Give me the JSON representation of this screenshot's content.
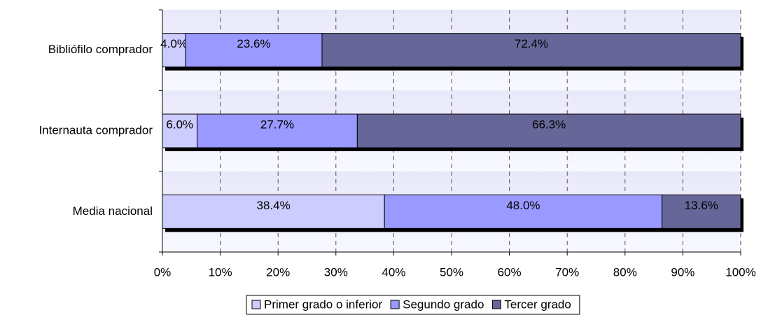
{
  "chart_data": {
    "type": "stacked_bar_horizontal",
    "categories": [
      "Bibliófilo comprador",
      "Internauta comprador",
      "Media nacional"
    ],
    "series": [
      {
        "name": "Primer grado o inferior",
        "color": "#ccccff",
        "values": [
          4.0,
          6.0,
          38.4
        ],
        "value_labels": [
          "4.0%",
          "6.0%",
          "38.4%"
        ]
      },
      {
        "name": "Segundo grado",
        "color": "#9999ff",
        "values": [
          23.6,
          27.7,
          48.0
        ],
        "value_labels": [
          "23.6%",
          "27.7%",
          "48.0%"
        ]
      },
      {
        "name": "Tercer grado",
        "color": "#666699",
        "values": [
          72.4,
          66.3,
          13.6
        ],
        "value_labels": [
          "72.4%",
          "66.3%",
          "13.6%"
        ]
      }
    ],
    "xlim": [
      0,
      100
    ],
    "xticks": [
      {
        "value": 0,
        "label": "0%"
      },
      {
        "value": 10,
        "label": "10%"
      },
      {
        "value": 20,
        "label": "20%"
      },
      {
        "value": 30,
        "label": "30%"
      },
      {
        "value": 40,
        "label": "40%"
      },
      {
        "value": 50,
        "label": "50%"
      },
      {
        "value": 60,
        "label": "60%"
      },
      {
        "value": 70,
        "label": "70%"
      },
      {
        "value": 80,
        "label": "80%"
      },
      {
        "value": 90,
        "label": "90%"
      },
      {
        "value": 100,
        "label": "100%"
      }
    ],
    "grid": true,
    "legend": "bottom"
  }
}
